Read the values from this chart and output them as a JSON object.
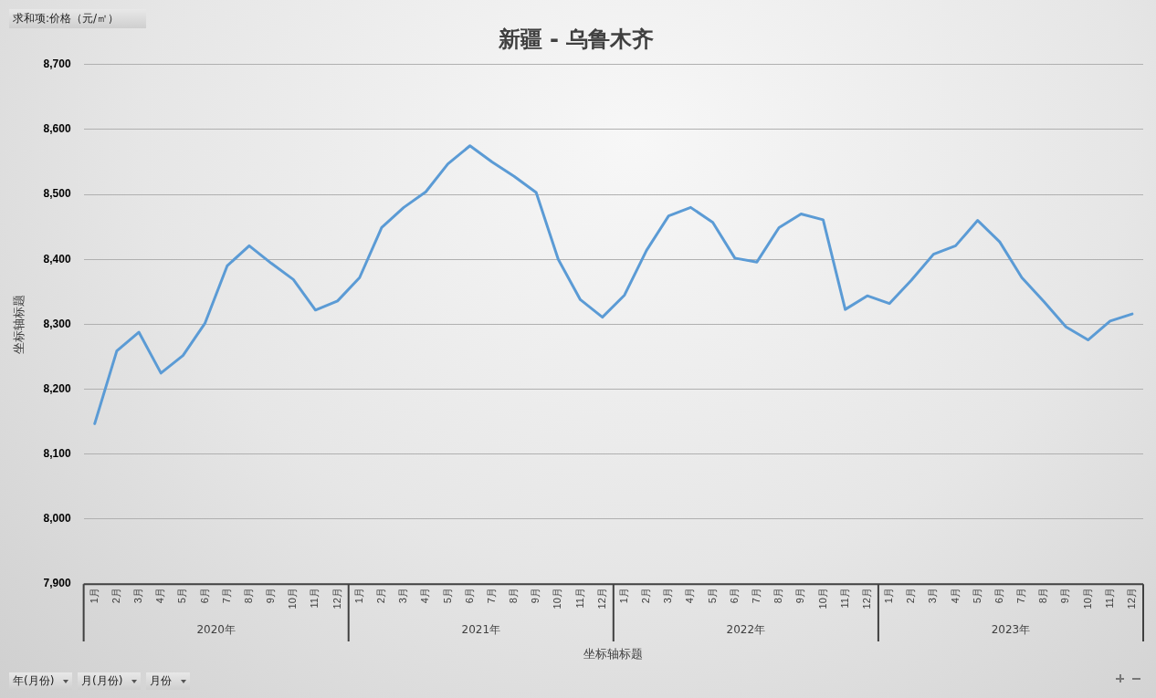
{
  "chart_data": {
    "type": "line",
    "title": "新疆 - 乌鲁木齐",
    "xlabel": "坐标轴标题",
    "ylabel": "坐标轴标题",
    "categories": [
      "1月",
      "2月",
      "3月",
      "4月",
      "5月",
      "6月",
      "7月",
      "8月",
      "9月",
      "10月",
      "11月",
      "12月",
      "1月",
      "2月",
      "3月",
      "4月",
      "5月",
      "6月",
      "7月",
      "8月",
      "9月",
      "10月",
      "11月",
      "12月",
      "1月",
      "2月",
      "3月",
      "4月",
      "5月",
      "6月",
      "7月",
      "8月",
      "9月",
      "10月",
      "11月",
      "12月",
      "1月",
      "2月",
      "3月",
      "4月",
      "5月",
      "6月",
      "7月",
      "8月",
      "9月",
      "10月",
      "11月",
      "12月"
    ],
    "series": [
      {
        "color": "#5b9bd5",
        "values": [
          8147,
          8259,
          8288,
          8225,
          8252,
          8302,
          8390,
          8421,
          8394,
          8369,
          8322,
          8336,
          8372,
          8449,
          8480,
          8504,
          8547,
          8575,
          8550,
          8528,
          8503,
          8400,
          8338,
          8311,
          8345,
          8414,
          8467,
          8480,
          8457,
          8402,
          8396,
          8449,
          8470,
          8461,
          8323,
          8344,
          8332,
          8368,
          8408,
          8421,
          8460,
          8427,
          8372,
          8335,
          8296,
          8276,
          8305,
          8316
        ]
      }
    ],
    "ylim": [
      7900,
      8700
    ],
    "yticks": [
      {
        "value": 7900,
        "label": "7,900"
      },
      {
        "value": 8000,
        "label": "8,000"
      },
      {
        "value": 8100,
        "label": "8,100"
      },
      {
        "value": 8200,
        "label": "8,200"
      },
      {
        "value": 8300,
        "label": "8,300"
      },
      {
        "value": 8400,
        "label": "8,400"
      },
      {
        "value": 8500,
        "label": "8,500"
      },
      {
        "value": 8600,
        "label": "8,600"
      },
      {
        "value": 8700,
        "label": "8,700"
      }
    ],
    "grid": "y",
    "legend": false,
    "marker": "none",
    "line_style": "solid",
    "annotations": [
      "求和项:价格（元/㎡）",
      "2020年",
      "2021年",
      "2022年",
      "2023年",
      "年(月份)",
      "月(月份)",
      "月份"
    ]
  }
}
